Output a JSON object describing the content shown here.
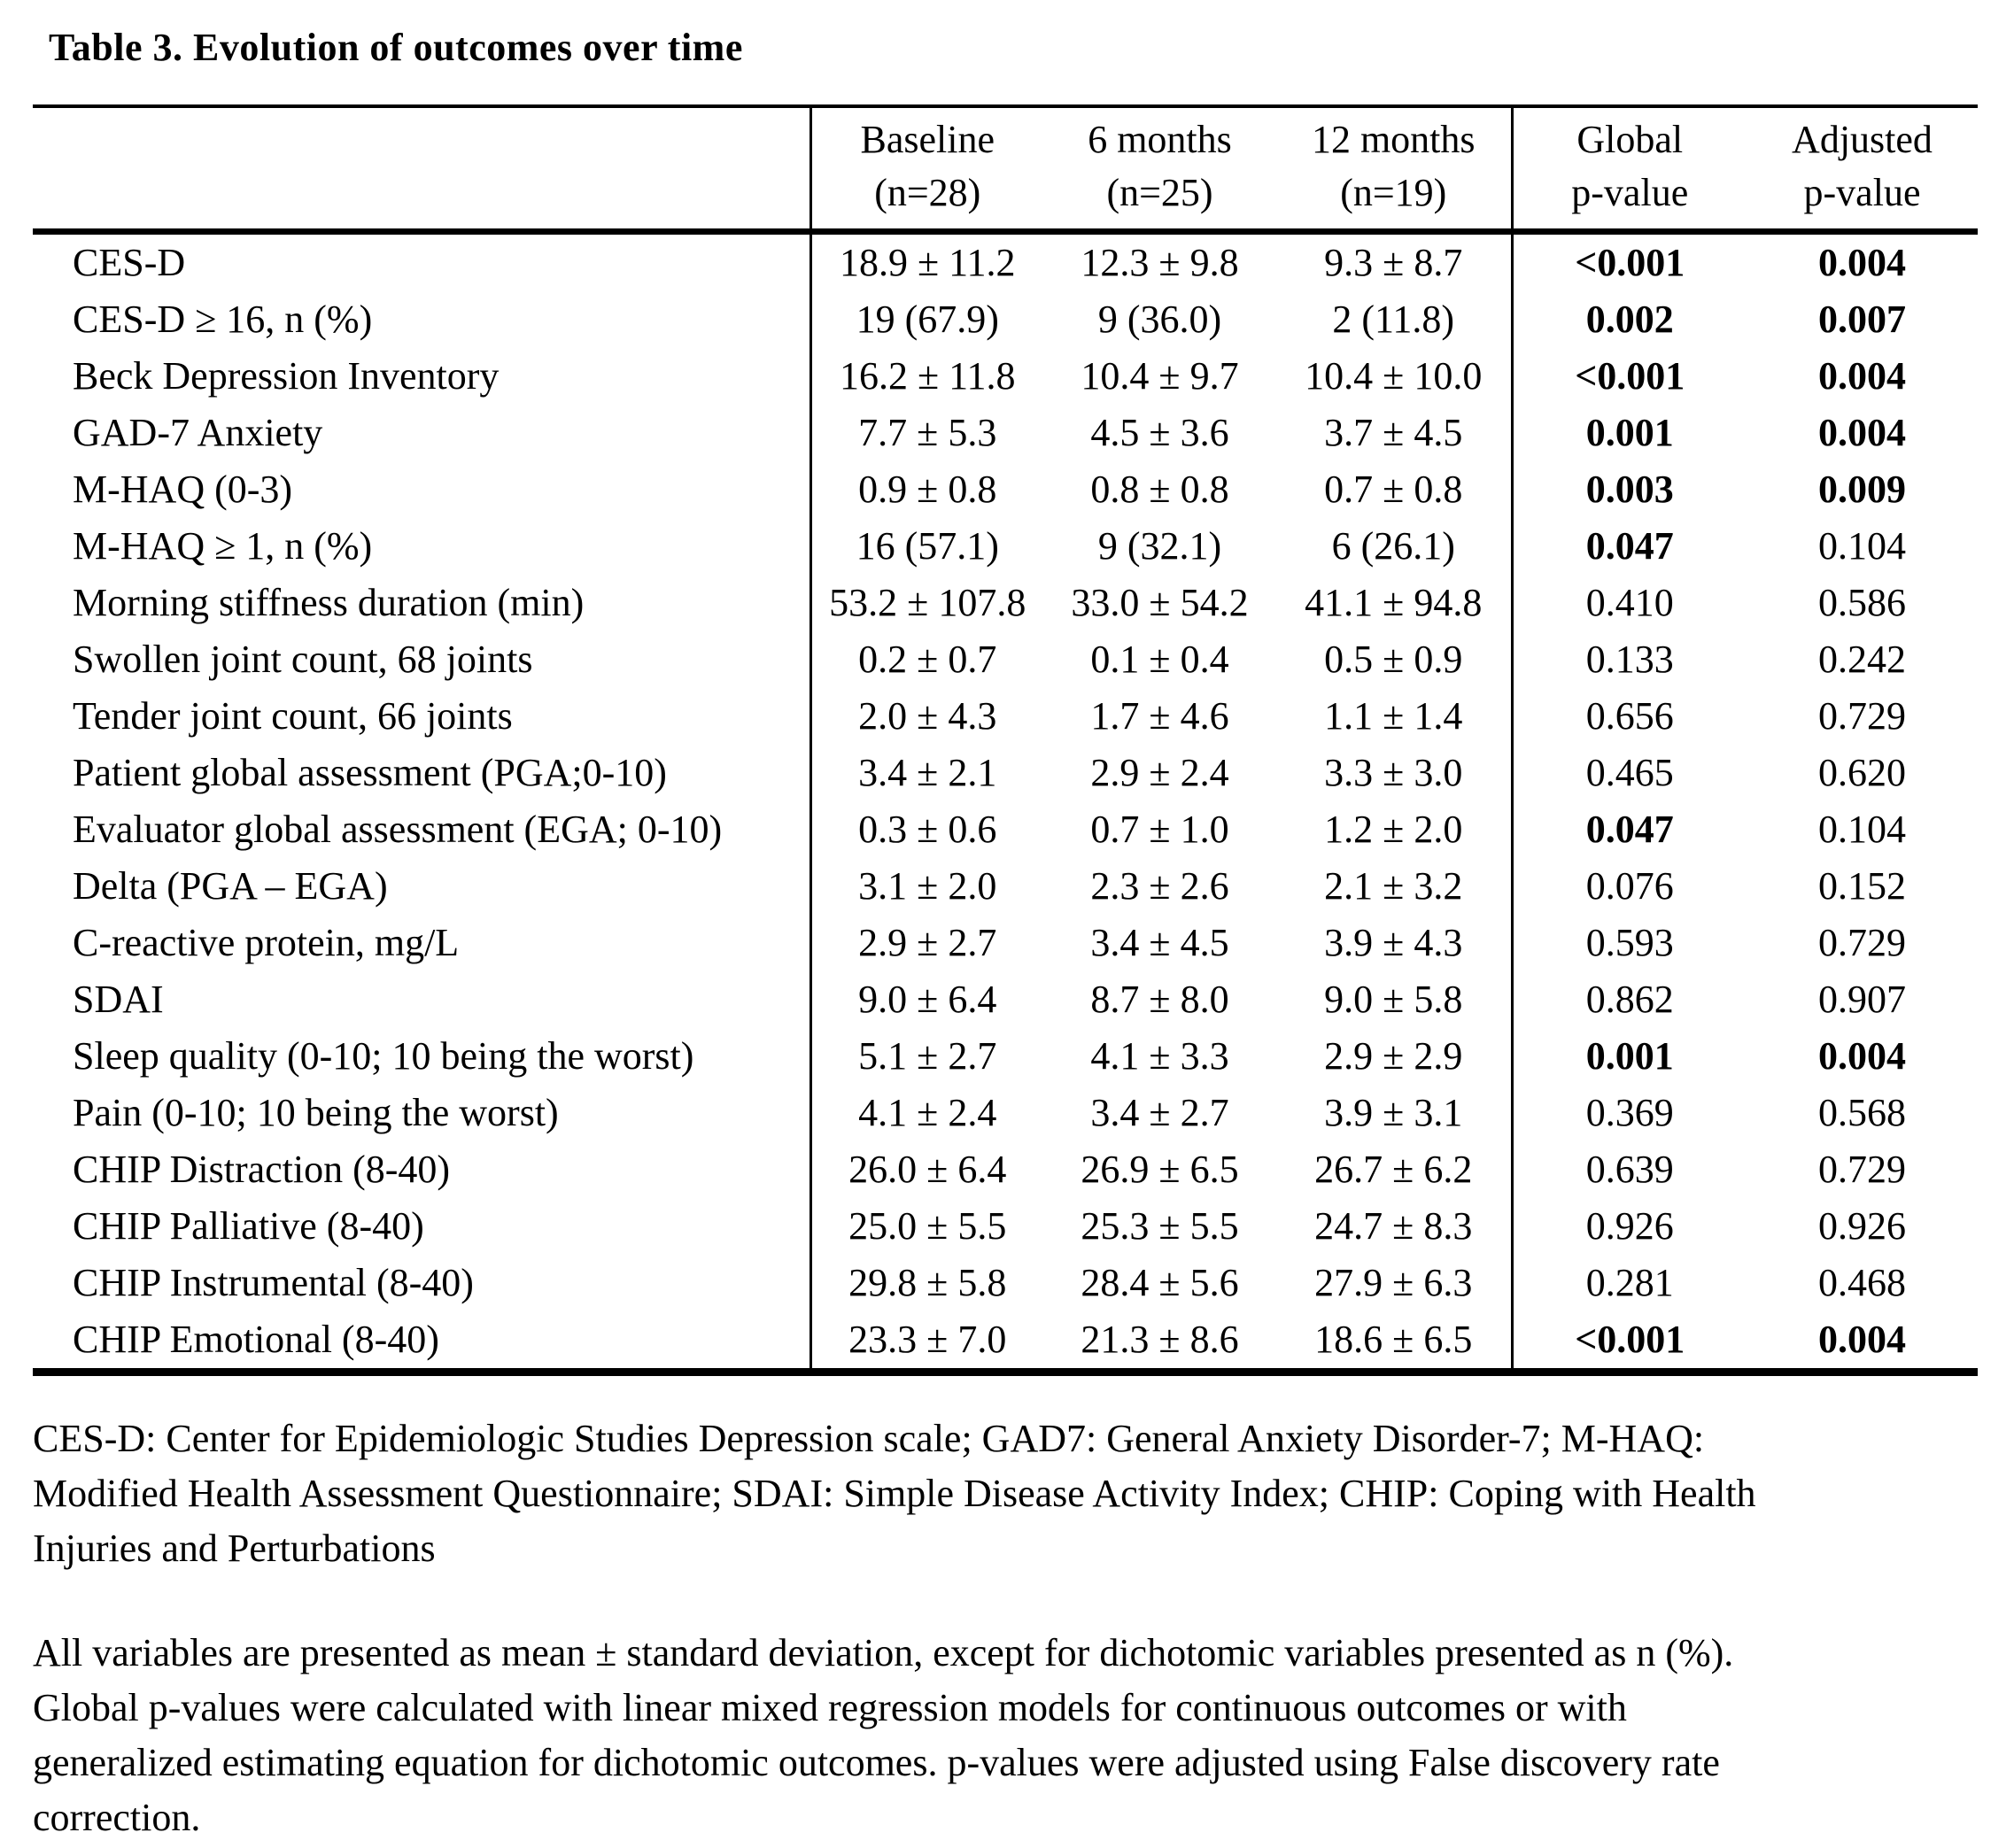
{
  "title": "Table 3. Evolution of outcomes over time",
  "colors": {
    "ink": "#000000",
    "background": "#ffffff"
  },
  "table": {
    "columns": [
      {
        "label": "",
        "sub": ""
      },
      {
        "label": "Baseline",
        "sub": "(n=28)"
      },
      {
        "label": "6 months",
        "sub": "(n=25)"
      },
      {
        "label": "12 months",
        "sub": "(n=19)"
      },
      {
        "label": "Global",
        "sub": "p-value"
      },
      {
        "label": "Adjusted",
        "sub": "p-value"
      }
    ],
    "rows": [
      {
        "label": "CES-D",
        "baseline": "18.9 ± 11.2",
        "m6": "12.3 ± 9.8",
        "m12": "9.3 ± 8.7",
        "global_p": "<0.001",
        "adjusted_p": "0.004",
        "global_bold": true,
        "adjusted_bold": true
      },
      {
        "label": "CES-D ≥ 16, n (%)",
        "baseline": "19 (67.9)",
        "m6": "9 (36.0)",
        "m12": "2 (11.8)",
        "global_p": "0.002",
        "adjusted_p": "0.007",
        "global_bold": true,
        "adjusted_bold": true
      },
      {
        "label": "Beck Depression Inventory",
        "baseline": "16.2 ± 11.8",
        "m6": "10.4 ± 9.7",
        "m12": "10.4 ± 10.0",
        "global_p": "<0.001",
        "adjusted_p": "0.004",
        "global_bold": true,
        "adjusted_bold": true
      },
      {
        "label": "GAD-7 Anxiety",
        "baseline": "7.7 ± 5.3",
        "m6": "4.5 ± 3.6",
        "m12": "3.7 ± 4.5",
        "global_p": "0.001",
        "adjusted_p": "0.004",
        "global_bold": true,
        "adjusted_bold": true
      },
      {
        "label": "M-HAQ (0-3)",
        "baseline": "0.9 ± 0.8",
        "m6": "0.8 ± 0.8",
        "m12": "0.7 ± 0.8",
        "global_p": "0.003",
        "adjusted_p": "0.009",
        "global_bold": true,
        "adjusted_bold": true
      },
      {
        "label": "M-HAQ ≥ 1, n (%)",
        "baseline": "16 (57.1)",
        "m6": "9 (32.1)",
        "m12": "6 (26.1)",
        "global_p": "0.047",
        "adjusted_p": "0.104",
        "global_bold": true,
        "adjusted_bold": false
      },
      {
        "label": "Morning stiffness duration (min)",
        "baseline": "53.2 ± 107.8",
        "m6": "33.0 ± 54.2",
        "m12": "41.1 ± 94.8",
        "global_p": "0.410",
        "adjusted_p": "0.586",
        "global_bold": false,
        "adjusted_bold": false
      },
      {
        "label": "Swollen joint count, 68 joints",
        "baseline": "0.2 ± 0.7",
        "m6": "0.1 ± 0.4",
        "m12": "0.5 ± 0.9",
        "global_p": "0.133",
        "adjusted_p": "0.242",
        "global_bold": false,
        "adjusted_bold": false
      },
      {
        "label": "Tender joint count, 66 joints",
        "baseline": "2.0 ± 4.3",
        "m6": "1.7 ± 4.6",
        "m12": "1.1 ± 1.4",
        "global_p": "0.656",
        "adjusted_p": "0.729",
        "global_bold": false,
        "adjusted_bold": false
      },
      {
        "label": "Patient global assessment (PGA;0-10)",
        "baseline": "3.4 ± 2.1",
        "m6": "2.9 ± 2.4",
        "m12": "3.3 ± 3.0",
        "global_p": "0.465",
        "adjusted_p": "0.620",
        "global_bold": false,
        "adjusted_bold": false
      },
      {
        "label": "Evaluator global assessment (EGA; 0-10)",
        "baseline": "0.3 ± 0.6",
        "m6": "0.7 ± 1.0",
        "m12": "1.2 ± 2.0",
        "global_p": "0.047",
        "adjusted_p": "0.104",
        "global_bold": true,
        "adjusted_bold": false
      },
      {
        "label": "Delta (PGA – EGA)",
        "baseline": "3.1 ± 2.0",
        "m6": "2.3 ± 2.6",
        "m12": "2.1 ± 3.2",
        "global_p": "0.076",
        "adjusted_p": "0.152",
        "global_bold": false,
        "adjusted_bold": false
      },
      {
        "label": "C-reactive protein, mg/L",
        "baseline": "2.9 ± 2.7",
        "m6": "3.4 ± 4.5",
        "m12": "3.9 ± 4.3",
        "global_p": "0.593",
        "adjusted_p": "0.729",
        "global_bold": false,
        "adjusted_bold": false
      },
      {
        "label": "SDAI",
        "baseline": "9.0 ± 6.4",
        "m6": "8.7 ± 8.0",
        "m12": "9.0 ± 5.8",
        "global_p": "0.862",
        "adjusted_p": "0.907",
        "global_bold": false,
        "adjusted_bold": false
      },
      {
        "label": "Sleep quality (0-10; 10 being the worst)",
        "baseline": "5.1 ± 2.7",
        "m6": "4.1 ± 3.3",
        "m12": "2.9 ± 2.9",
        "global_p": "0.001",
        "adjusted_p": "0.004",
        "global_bold": true,
        "adjusted_bold": true
      },
      {
        "label": "Pain (0-10; 10 being the worst)",
        "baseline": "4.1 ± 2.4",
        "m6": "3.4 ± 2.7",
        "m12": "3.9 ± 3.1",
        "global_p": "0.369",
        "adjusted_p": "0.568",
        "global_bold": false,
        "adjusted_bold": false
      },
      {
        "label": "CHIP Distraction (8-40)",
        "baseline": "26.0 ± 6.4",
        "m6": "26.9 ± 6.5",
        "m12": "26.7 ± 6.2",
        "global_p": "0.639",
        "adjusted_p": "0.729",
        "global_bold": false,
        "adjusted_bold": false
      },
      {
        "label": "CHIP Palliative (8-40)",
        "baseline": "25.0 ± 5.5",
        "m6": "25.3 ± 5.5",
        "m12": "24.7 ± 8.3",
        "global_p": "0.926",
        "adjusted_p": "0.926",
        "global_bold": false,
        "adjusted_bold": false
      },
      {
        "label": "CHIP Instrumental (8-40)",
        "baseline": "29.8 ± 5.8",
        "m6": "28.4 ± 5.6",
        "m12": "27.9 ± 6.3",
        "global_p": "0.281",
        "adjusted_p": "0.468",
        "global_bold": false,
        "adjusted_bold": false
      },
      {
        "label": "CHIP Emotional (8-40)",
        "baseline": "23.3 ± 7.0",
        "m6": "21.3 ± 8.6",
        "m12": "18.6 ± 6.5",
        "global_p": "<0.001",
        "adjusted_p": "0.004",
        "global_bold": true,
        "adjusted_bold": true
      }
    ]
  },
  "footnotes": {
    "abbreviations": {
      "lines": [
        "CES-D: Center for Epidemiologic Studies Depression scale; GAD7: General Anxiety Disorder-7; M-HAQ:",
        "Modified Health Assessment Questionnaire; SDAI: Simple Disease Activity Index; CHIP: Coping with Health",
        "Injuries and Perturbations"
      ]
    },
    "methods": {
      "lines": [
        "All variables are presented as mean ± standard deviation, except for dichotomic variables presented as n (%).",
        "Global p-values were calculated with linear mixed regression models for continuous outcomes or with",
        "generalized estimating equation for dichotomic outcomes. p-values were adjusted using False discovery rate",
        "correction."
      ]
    }
  }
}
